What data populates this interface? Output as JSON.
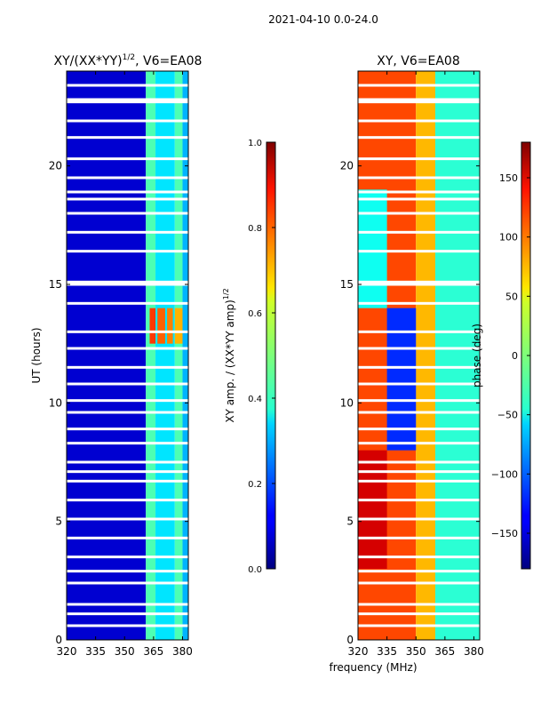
{
  "suptitle": "2021-04-10 0.0-24.0",
  "shared_xlabel": "frequency (MHz)",
  "chart_data": [
    {
      "type": "heatmap",
      "title_text": "XY/(XX*YY)",
      "title_sup": "1/2",
      "title_suffix": ", V6=EA08",
      "xlabel": "",
      "ylabel": "UT (hours)",
      "xlim": [
        320,
        383
      ],
      "ylim": [
        0,
        24
      ],
      "x_ticks": [
        320,
        335,
        350,
        365,
        380
      ],
      "y_ticks": [
        0,
        5,
        10,
        15,
        20
      ],
      "colorbar": {
        "label_text": "XY amp. / (XX*YY amp)",
        "label_sup": "1/2",
        "range": [
          0.0,
          1.0
        ],
        "ticks": [
          "0.0",
          "0.2",
          "0.4",
          "0.6",
          "0.8",
          "1.0"
        ],
        "tick_values": [
          0.0,
          0.2,
          0.4,
          0.6,
          0.8,
          1.0
        ]
      },
      "regions": [
        {
          "x": [
            320,
            361
          ],
          "y": [
            0,
            24
          ],
          "value": 0.08
        },
        {
          "x": [
            361,
            366
          ],
          "y": [
            0,
            24
          ],
          "value": 0.45
        },
        {
          "x": [
            366,
            376
          ],
          "y": [
            0,
            24
          ],
          "value": 0.35
        },
        {
          "x": [
            376,
            380
          ],
          "y": [
            0,
            24
          ],
          "value": 0.45
        },
        {
          "x": [
            380,
            383
          ],
          "y": [
            0,
            24
          ],
          "value": 0.3
        },
        {
          "x": [
            363,
            366
          ],
          "y": [
            12.5,
            14
          ],
          "value": 0.82
        },
        {
          "x": [
            367,
            371
          ],
          "y": [
            12.5,
            14
          ],
          "value": 0.78
        },
        {
          "x": [
            372,
            375
          ],
          "y": [
            12.5,
            14
          ],
          "value": 0.75
        },
        {
          "x": [
            376,
            380
          ],
          "y": [
            12.5,
            14
          ],
          "value": 0.7
        }
      ]
    },
    {
      "type": "heatmap",
      "title_text": "XY, V6=EA08",
      "title_sup": "",
      "title_suffix": "",
      "xlabel": "frequency (MHz)",
      "ylabel": "",
      "xlim": [
        320,
        383
      ],
      "ylim": [
        0,
        24
      ],
      "x_ticks": [
        320,
        335,
        350,
        365,
        380
      ],
      "y_ticks": [
        0,
        5,
        10,
        15,
        20
      ],
      "colorbar": {
        "label_text": "phase (deg)",
        "label_sup": "",
        "range": [
          -180,
          180
        ],
        "ticks": [
          "−150",
          "−100",
          "−50",
          "0",
          "50",
          "100",
          "150"
        ],
        "tick_values": [
          -150,
          -100,
          -50,
          0,
          50,
          100,
          150
        ]
      },
      "regions": [
        {
          "x": [
            320,
            350
          ],
          "y": [
            0,
            24
          ],
          "value": 110
        },
        {
          "x": [
            350,
            360
          ],
          "y": [
            0,
            24
          ],
          "value": 70
        },
        {
          "x": [
            360,
            383
          ],
          "y": [
            0,
            24
          ],
          "value": -30
        },
        {
          "x": [
            320,
            335
          ],
          "y": [
            14,
            19
          ],
          "value": -40
        },
        {
          "x": [
            335,
            350
          ],
          "y": [
            8,
            14
          ],
          "value": -120
        },
        {
          "x": [
            320,
            335
          ],
          "y": [
            3,
            8
          ],
          "value": 150
        }
      ]
    }
  ],
  "gap_rows_hours": [
    0.6,
    1.1,
    1.5,
    2.4,
    2.9,
    3.5,
    4.3,
    5.1,
    5.9,
    6.7,
    7.1,
    7.5,
    8.3,
    8.9,
    9.6,
    10.1,
    10.8,
    11.5,
    12.3,
    13.0,
    14.2,
    15.0,
    15.1,
    16.4,
    17.2,
    18.0,
    18.6,
    18.9,
    19.5,
    20.3,
    21.2,
    21.9,
    22.7,
    22.8,
    23.4
  ]
}
